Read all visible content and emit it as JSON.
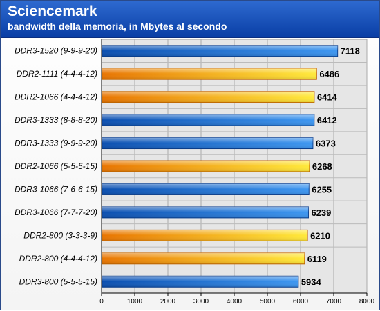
{
  "header": {
    "title": "Sciencemark",
    "subtitle": "bandwidth della memoria, in Mbytes al secondo"
  },
  "colors": {
    "ddr3_bar": "#1a6fd8",
    "ddr2_bar": "#f5b000",
    "plot_bg": "#e6e6e6",
    "header_bg": "#1550c0"
  },
  "chart_data": {
    "type": "bar",
    "orientation": "horizontal",
    "title": "Sciencemark",
    "subtitle": "bandwidth della memoria, in Mbytes al secondo",
    "categories": [
      "DDR3-1520 (9-9-9-20)",
      "DDR2-1111 (4-4-4-12)",
      "DDR2-1066 (4-4-4-12)",
      "DDR3-1333 (8-8-8-20)",
      "DDR3-1333 (9-9-9-20)",
      "DDR2-1066 (5-5-5-15)",
      "DDR3-1066 (7-6-6-15)",
      "DDR3-1066 (7-7-7-20)",
      "DDR2-800 (3-3-3-9)",
      "DDR2-800 (4-4-4-12)",
      "DDR3-800 (5-5-5-15)"
    ],
    "values": [
      7118,
      6486,
      6414,
      6412,
      6373,
      6268,
      6255,
      6239,
      6210,
      6119,
      5934
    ],
    "memory_type": [
      "DDR3",
      "DDR2",
      "DDR2",
      "DDR3",
      "DDR3",
      "DDR2",
      "DDR3",
      "DDR3",
      "DDR2",
      "DDR2",
      "DDR3"
    ],
    "xlim": [
      0,
      8000
    ],
    "xticks": [
      0,
      1000,
      2000,
      3000,
      4000,
      5000,
      6000,
      7000,
      8000
    ],
    "xlabel": "",
    "ylabel": "",
    "grid": true,
    "legend": "none"
  }
}
